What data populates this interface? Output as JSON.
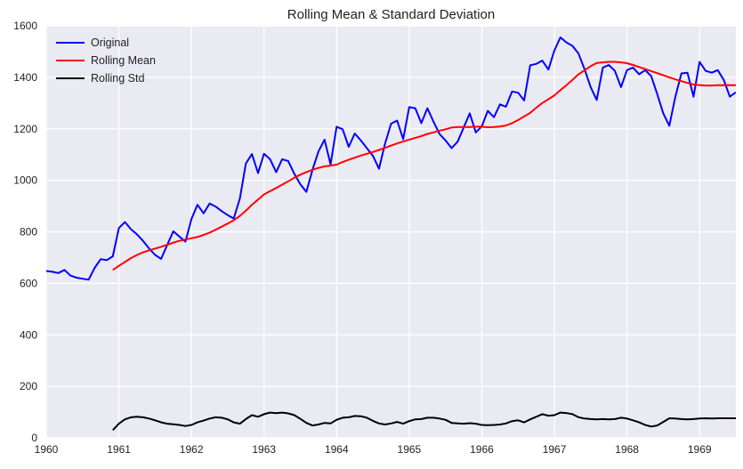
{
  "chart_data": {
    "type": "line",
    "title": "Rolling Mean & Standard Deviation",
    "xlabel": "",
    "ylabel": "",
    "xlim": [
      1960.0,
      1969.5
    ],
    "ylim": [
      0,
      1600
    ],
    "xticks": [
      1960,
      1961,
      1962,
      1963,
      1964,
      1965,
      1966,
      1967,
      1968,
      1969
    ],
    "yticks": [
      0,
      200,
      400,
      600,
      800,
      1000,
      1200,
      1400,
      1600
    ],
    "grid": true,
    "legend_position": "top-left",
    "series": [
      {
        "name": "Original",
        "color": "#0000ff",
        "x": [
          1960.0,
          1960.083,
          1960.167,
          1960.25,
          1960.333,
          1960.417,
          1960.5,
          1960.583,
          1960.667,
          1960.75,
          1960.833,
          1960.917,
          1961.0,
          1961.083,
          1961.167,
          1961.25,
          1961.333,
          1961.417,
          1961.5,
          1961.583,
          1961.667,
          1961.75,
          1961.833,
          1961.917,
          1962.0,
          1962.083,
          1962.167,
          1962.25,
          1962.333,
          1962.417,
          1962.5,
          1962.583,
          1962.667,
          1962.75,
          1962.833,
          1962.917,
          1963.0,
          1963.083,
          1963.167,
          1963.25,
          1963.333,
          1963.417,
          1963.5,
          1963.583,
          1963.667,
          1963.75,
          1963.833,
          1963.917,
          1964.0,
          1964.083,
          1964.167,
          1964.25,
          1964.333,
          1964.417,
          1964.5,
          1964.583,
          1964.667,
          1964.75,
          1964.833,
          1964.917,
          1965.0,
          1965.083,
          1965.167,
          1965.25,
          1965.333,
          1965.417,
          1965.5,
          1965.583,
          1965.667,
          1965.75,
          1965.833,
          1965.917,
          1966.0,
          1966.083,
          1966.167,
          1966.25,
          1966.333,
          1966.417,
          1966.5,
          1966.583,
          1966.667,
          1966.75,
          1966.833,
          1966.917,
          1967.0,
          1967.083,
          1967.167,
          1967.25,
          1967.333,
          1967.417,
          1967.5,
          1967.583,
          1967.667,
          1967.75,
          1967.833,
          1967.917,
          1968.0,
          1968.083,
          1968.167,
          1968.25,
          1968.333,
          1968.417,
          1968.5,
          1968.583,
          1968.667,
          1968.75,
          1968.833,
          1968.917,
          1969.0,
          1969.083,
          1969.167,
          1969.25,
          1969.333,
          1969.417,
          1969.5
        ],
        "y": [
          648,
          645,
          640,
          652,
          630,
          622,
          618,
          614,
          660,
          694,
          690,
          705,
          815,
          838,
          810,
          790,
          765,
          735,
          710,
          695,
          750,
          802,
          782,
          762,
          850,
          905,
          872,
          910,
          898,
          880,
          865,
          852,
          930,
          1065,
          1102,
          1028,
          1103,
          1082,
          1032,
          1082,
          1075,
          1025,
          985,
          955,
          1040,
          1112,
          1158,
          1062,
          1208,
          1198,
          1130,
          1182,
          1155,
          1125,
          1095,
          1045,
          1142,
          1220,
          1232,
          1160,
          1284,
          1280,
          1222,
          1280,
          1228,
          1180,
          1155,
          1125,
          1150,
          1205,
          1260,
          1186,
          1210,
          1270,
          1245,
          1295,
          1286,
          1345,
          1340,
          1310,
          1447,
          1452,
          1465,
          1430,
          1505,
          1555,
          1535,
          1522,
          1492,
          1430,
          1362,
          1312,
          1438,
          1448,
          1425,
          1362,
          1428,
          1438,
          1412,
          1428,
          1405,
          1335,
          1260,
          1212,
          1325,
          1415,
          1418,
          1325,
          1460,
          1425,
          1418,
          1428,
          1390,
          1325,
          1342
        ]
      },
      {
        "name": "Rolling Mean",
        "color": "#ff0000",
        "x": [
          1960.917,
          1961.0,
          1961.083,
          1961.167,
          1961.25,
          1961.333,
          1961.417,
          1961.5,
          1961.583,
          1961.667,
          1961.75,
          1961.833,
          1961.917,
          1962.0,
          1962.083,
          1962.167,
          1962.25,
          1962.333,
          1962.417,
          1962.5,
          1962.583,
          1962.667,
          1962.75,
          1962.833,
          1962.917,
          1963.0,
          1963.083,
          1963.167,
          1963.25,
          1963.333,
          1963.417,
          1963.5,
          1963.583,
          1963.667,
          1963.75,
          1963.833,
          1963.917,
          1964.0,
          1964.083,
          1964.167,
          1964.25,
          1964.333,
          1964.417,
          1964.5,
          1964.583,
          1964.667,
          1964.75,
          1964.833,
          1964.917,
          1965.0,
          1965.083,
          1965.167,
          1965.25,
          1965.333,
          1965.417,
          1965.5,
          1965.583,
          1965.667,
          1965.75,
          1965.833,
          1965.917,
          1966.0,
          1966.083,
          1966.167,
          1966.25,
          1966.333,
          1966.417,
          1966.5,
          1966.583,
          1966.667,
          1966.75,
          1966.833,
          1966.917,
          1967.0,
          1967.083,
          1967.167,
          1967.25,
          1967.333,
          1967.417,
          1967.5,
          1967.583,
          1967.667,
          1967.75,
          1967.833,
          1967.917,
          1968.0,
          1968.083,
          1968.167,
          1968.25,
          1968.333,
          1968.417,
          1968.5,
          1968.583,
          1968.667,
          1968.75,
          1968.833,
          1968.917,
          1969.0,
          1969.083,
          1969.167,
          1969.25,
          1969.333,
          1969.417,
          1969.5
        ],
        "y": [
          652,
          668,
          683,
          698,
          710,
          720,
          728,
          735,
          742,
          750,
          758,
          765,
          770,
          775,
          780,
          788,
          797,
          808,
          820,
          832,
          845,
          862,
          882,
          905,
          925,
          945,
          958,
          970,
          983,
          996,
          1010,
          1022,
          1032,
          1041,
          1048,
          1054,
          1057,
          1061,
          1071,
          1080,
          1088,
          1096,
          1103,
          1110,
          1118,
          1126,
          1135,
          1143,
          1151,
          1158,
          1165,
          1172,
          1180,
          1186,
          1193,
          1198,
          1205,
          1207,
          1207,
          1207,
          1208,
          1208,
          1206,
          1207,
          1209,
          1213,
          1222,
          1234,
          1248,
          1262,
          1282,
          1300,
          1315,
          1330,
          1350,
          1370,
          1390,
          1412,
          1428,
          1443,
          1456,
          1458,
          1460,
          1460,
          1458,
          1455,
          1448,
          1440,
          1432,
          1424,
          1416,
          1408,
          1400,
          1392,
          1385,
          1378,
          1372,
          1370,
          1368,
          1368,
          1369,
          1369,
          1370,
          1369
        ]
      },
      {
        "name": "Rolling Std",
        "color": "#000000",
        "x": [
          1960.917,
          1961.0,
          1961.083,
          1961.167,
          1961.25,
          1961.333,
          1961.417,
          1961.5,
          1961.583,
          1961.667,
          1961.75,
          1961.833,
          1961.917,
          1962.0,
          1962.083,
          1962.167,
          1962.25,
          1962.333,
          1962.417,
          1962.5,
          1962.583,
          1962.667,
          1962.75,
          1962.833,
          1962.917,
          1963.0,
          1963.083,
          1963.167,
          1963.25,
          1963.333,
          1963.417,
          1963.5,
          1963.583,
          1963.667,
          1963.75,
          1963.833,
          1963.917,
          1964.0,
          1964.083,
          1964.167,
          1964.25,
          1964.333,
          1964.417,
          1964.5,
          1964.583,
          1964.667,
          1964.75,
          1964.833,
          1964.917,
          1965.0,
          1965.083,
          1965.167,
          1965.25,
          1965.333,
          1965.417,
          1965.5,
          1965.583,
          1965.667,
          1965.75,
          1965.833,
          1965.917,
          1966.0,
          1966.083,
          1966.167,
          1966.25,
          1966.333,
          1966.417,
          1966.5,
          1966.583,
          1966.667,
          1966.75,
          1966.833,
          1966.917,
          1967.0,
          1967.083,
          1967.167,
          1967.25,
          1967.333,
          1967.417,
          1967.5,
          1967.583,
          1967.667,
          1967.75,
          1967.833,
          1967.917,
          1968.0,
          1968.083,
          1968.167,
          1968.25,
          1968.333,
          1968.417,
          1968.5,
          1968.583,
          1968.667,
          1968.75,
          1968.833,
          1968.917,
          1969.0,
          1969.083,
          1969.167,
          1969.25,
          1969.333,
          1969.417,
          1969.5
        ],
        "y": [
          30,
          55,
          72,
          80,
          82,
          80,
          75,
          68,
          60,
          55,
          53,
          50,
          46,
          50,
          60,
          67,
          75,
          80,
          78,
          72,
          60,
          55,
          73,
          88,
          82,
          92,
          98,
          96,
          98,
          95,
          88,
          74,
          58,
          48,
          52,
          58,
          56,
          70,
          78,
          80,
          85,
          84,
          78,
          66,
          56,
          52,
          56,
          62,
          55,
          65,
          72,
          73,
          78,
          78,
          75,
          70,
          58,
          56,
          55,
          57,
          55,
          50,
          49,
          50,
          52,
          56,
          65,
          68,
          60,
          72,
          82,
          92,
          86,
          88,
          98,
          96,
          92,
          80,
          75,
          73,
          72,
          73,
          72,
          73,
          78,
          75,
          68,
          60,
          50,
          44,
          48,
          62,
          76,
          75,
          73,
          72,
          73,
          75,
          76,
          75,
          76,
          76,
          76,
          76
        ]
      }
    ]
  }
}
